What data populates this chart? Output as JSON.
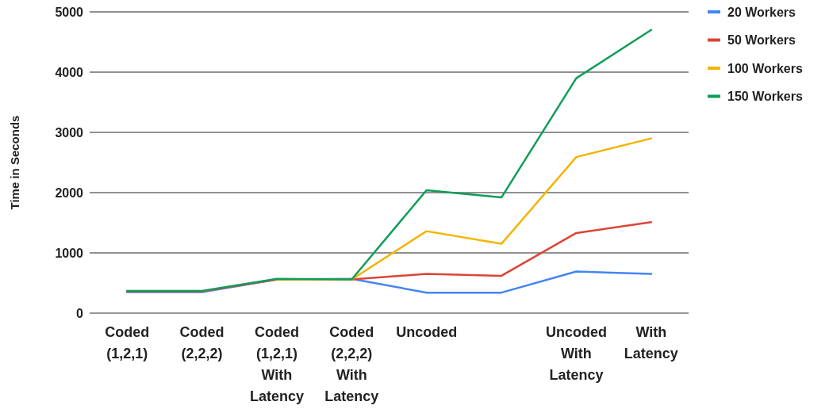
{
  "chart_data": {
    "type": "line",
    "ylabel": "Time in Seconds",
    "categories": [
      "Coded (1,2,1)",
      "Coded (2,2,2)",
      "Coded (1,2,1) With Latency",
      "Coded (2,2,2) With Latency",
      "Uncoded",
      null,
      "Uncoded With Latency",
      "With Latency"
    ],
    "ylim": [
      0,
      5000
    ],
    "yticks": [
      0,
      1000,
      2000,
      3000,
      4000,
      5000
    ],
    "grid": "y",
    "legend": "top right",
    "marker": "none",
    "line_style": "solid",
    "series": [
      {
        "name": "20 Workers",
        "color": "#4285f4",
        "values": [
          350,
          350,
          560,
          570,
          340,
          340,
          690,
          650
        ]
      },
      {
        "name": "50 Workers",
        "color": "#db4437",
        "values": [
          360,
          360,
          560,
          560,
          650,
          620,
          1330,
          1510
        ]
      },
      {
        "name": "100 Workers",
        "color": "#f4b400",
        "values": [
          null,
          null,
          560,
          560,
          1360,
          1150,
          2590,
          2900
        ]
      },
      {
        "name": "150 Workers",
        "color": "#0f9d58",
        "values": [
          370,
          370,
          570,
          560,
          2040,
          1920,
          3900,
          4700
        ]
      }
    ]
  }
}
